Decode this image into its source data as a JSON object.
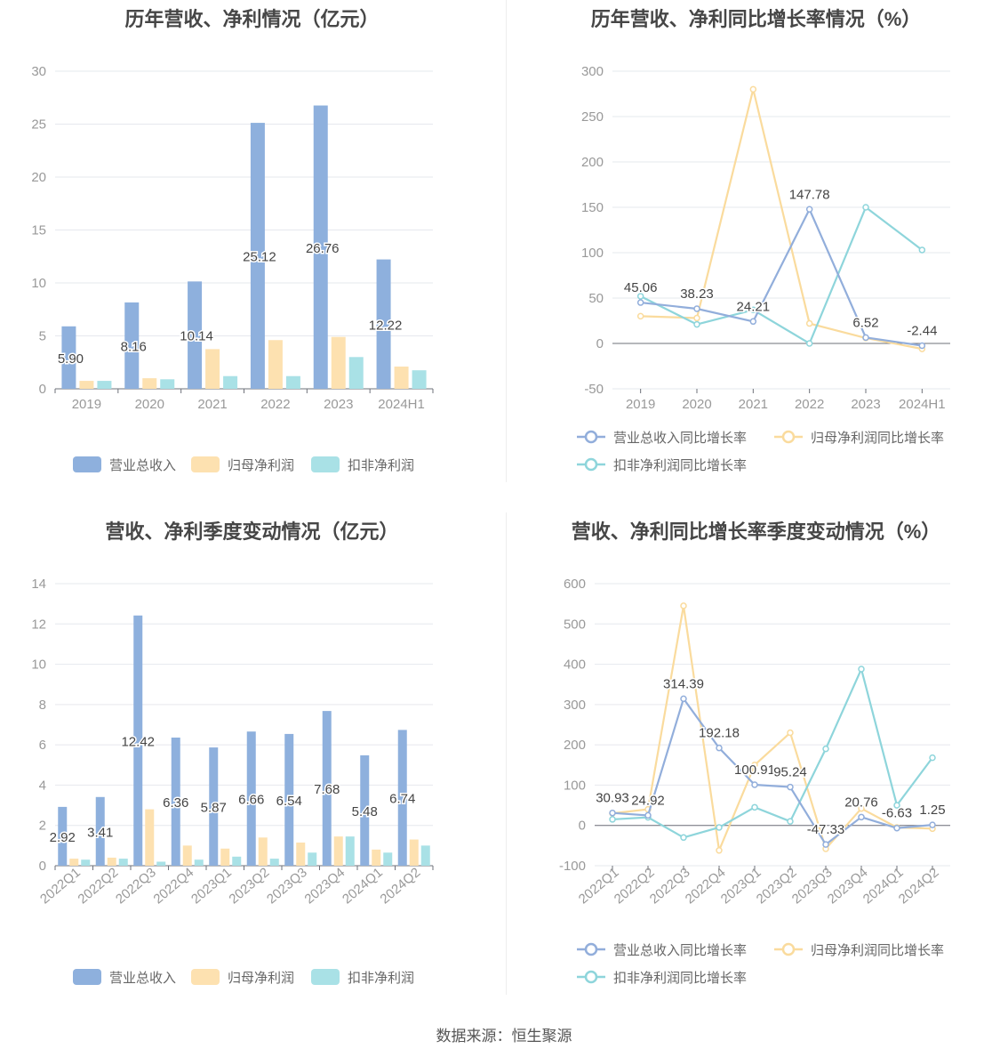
{
  "colors": {
    "revenue": "#8eb0dd",
    "net": "#fde1b0",
    "deducted": "#a9e1e6",
    "line_revenue": "#92aedb",
    "line_net": "#fadb9d",
    "line_deducted": "#8ed5db",
    "grid": "#e6e8ee",
    "axis_text": "#999999",
    "label_text": "#444444"
  },
  "legend_icons": {
    "bar": "rounded-rect",
    "line": "circle-on-line"
  },
  "footer": {
    "source": "数据来源：恒生聚源"
  },
  "chart_data": [
    {
      "id": "c1",
      "type": "bar",
      "title": "历年营收、净利情况（亿元）",
      "categories": [
        "2019",
        "2020",
        "2021",
        "2022",
        "2023",
        "2024H1"
      ],
      "ylim": [
        0,
        30
      ],
      "yticks": [
        0,
        5,
        10,
        15,
        20,
        25,
        30
      ],
      "grid": true,
      "legend_position": "bottom",
      "rotate_labels": false,
      "series": [
        {
          "name": "营业总收入",
          "values": [
            5.9,
            8.16,
            10.14,
            25.12,
            26.76,
            12.22
          ],
          "labels": [
            "5.90",
            "8.16",
            "10.14",
            "25.12",
            "26.76",
            "12.22"
          ]
        },
        {
          "name": "归母净利润",
          "values": [
            0.75,
            1.0,
            3.75,
            4.6,
            4.9,
            2.1
          ]
        },
        {
          "name": "扣非净利润",
          "values": [
            0.75,
            0.9,
            1.2,
            1.2,
            3.0,
            1.75
          ]
        }
      ]
    },
    {
      "id": "c2",
      "type": "line",
      "title": "历年营收、净利同比增长率情况（%）",
      "categories": [
        "2019",
        "2020",
        "2021",
        "2022",
        "2023",
        "2024H1"
      ],
      "ylim": [
        -50,
        300
      ],
      "yticks": [
        -50,
        0,
        50,
        100,
        150,
        200,
        250,
        300
      ],
      "grid": true,
      "legend_position": "bottom",
      "rotate_labels": false,
      "series": [
        {
          "name": "营业总收入同比增长率",
          "values": [
            45.06,
            38.23,
            24.21,
            147.78,
            6.52,
            -2.44
          ],
          "labels": [
            "45.06",
            "38.23",
            "24.21",
            "147.78",
            "6.52",
            "-2.44"
          ]
        },
        {
          "name": "归母净利润同比增长率",
          "values": [
            30,
            28,
            280,
            22,
            6,
            -6
          ]
        },
        {
          "name": "扣非净利润同比增长率",
          "values": [
            52,
            21,
            37,
            0,
            150,
            103
          ]
        }
      ]
    },
    {
      "id": "c3",
      "type": "bar",
      "title": "营收、净利季度变动情况（亿元）",
      "categories": [
        "2022Q1",
        "2022Q2",
        "2022Q3",
        "2022Q4",
        "2023Q1",
        "2023Q2",
        "2023Q3",
        "2023Q4",
        "2024Q1",
        "2024Q2"
      ],
      "ylim": [
        0,
        14
      ],
      "yticks": [
        0,
        2,
        4,
        6,
        8,
        10,
        12,
        14
      ],
      "grid": true,
      "legend_position": "bottom",
      "rotate_labels": true,
      "series": [
        {
          "name": "营业总收入",
          "values": [
            2.92,
            3.41,
            12.42,
            6.36,
            5.87,
            6.66,
            6.54,
            7.68,
            5.48,
            6.74
          ],
          "labels": [
            "2.92",
            "3.41",
            "12.42",
            "6.36",
            "5.87",
            "6.66",
            "6.54",
            "7.68",
            "5.48",
            "6.74"
          ]
        },
        {
          "name": "归母净利润",
          "values": [
            0.35,
            0.4,
            2.8,
            1.0,
            0.85,
            1.4,
            1.15,
            1.45,
            0.8,
            1.3
          ]
        },
        {
          "name": "扣非净利润",
          "values": [
            0.3,
            0.35,
            0.2,
            0.3,
            0.45,
            0.35,
            0.65,
            1.45,
            0.65,
            1.0
          ]
        }
      ]
    },
    {
      "id": "c4",
      "type": "line",
      "title": "营收、净利同比增长率季度变动情况（%）",
      "categories": [
        "2022Q1",
        "2022Q2",
        "2022Q3",
        "2022Q4",
        "2023Q1",
        "2023Q2",
        "2023Q3",
        "2023Q4",
        "2024Q1",
        "2024Q2"
      ],
      "ylim": [
        -100,
        600
      ],
      "yticks": [
        -100,
        0,
        100,
        200,
        300,
        400,
        500,
        600
      ],
      "grid": true,
      "legend_position": "bottom",
      "rotate_labels": true,
      "series": [
        {
          "name": "营业总收入同比增长率",
          "values": [
            30.93,
            24.92,
            314.39,
            192.18,
            100.91,
            95.24,
            -47.33,
            20.76,
            -6.63,
            1.25
          ],
          "labels": [
            "30.93",
            "24.92",
            "314.39",
            "192.18",
            "100.91",
            "95.24",
            "-47.33",
            "20.76",
            "-6.63",
            "1.25"
          ]
        },
        {
          "name": "归母净利润同比增长率",
          "values": [
            30,
            40,
            545,
            -62,
            150,
            230,
            -58,
            42,
            -5,
            -8
          ]
        },
        {
          "name": "扣非净利润同比增长率",
          "values": [
            15,
            20,
            -30,
            -5,
            45,
            10,
            190,
            388,
            50,
            168
          ]
        }
      ]
    }
  ]
}
